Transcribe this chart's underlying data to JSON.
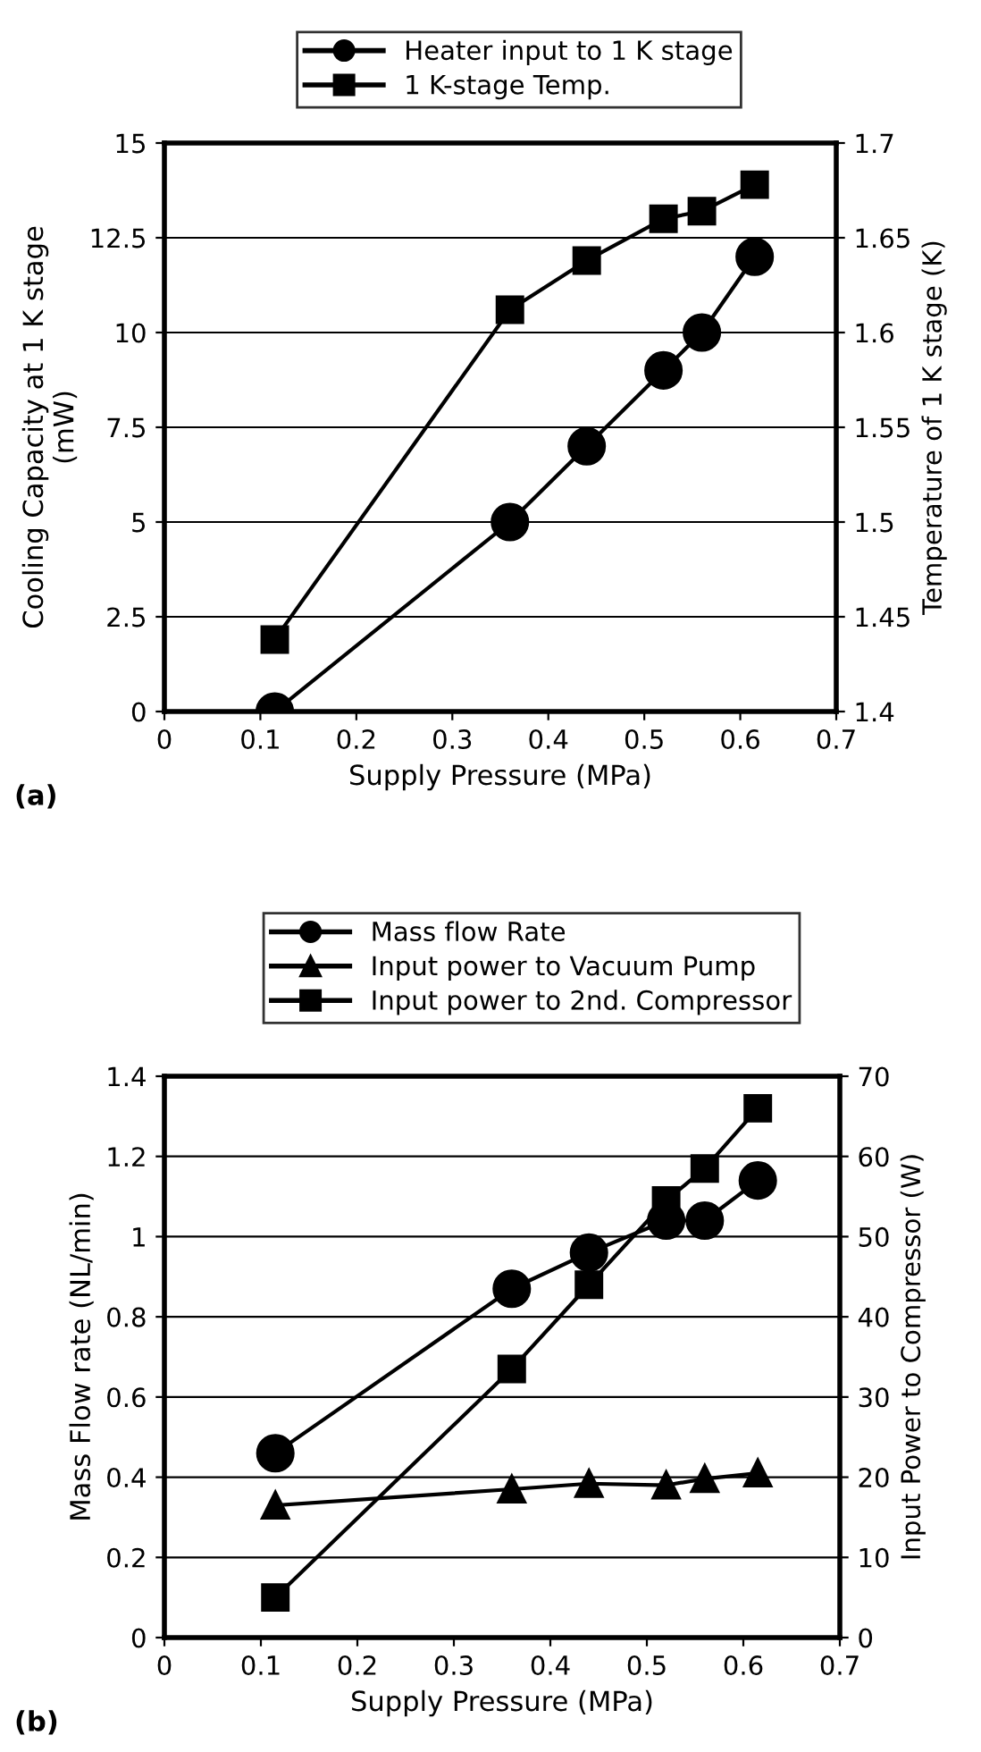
{
  "chart_data": [
    {
      "type": "line",
      "xlabel": "Supply Pressure (MPa)",
      "ylabel": "Cooling Capacity at 1 K stage\n(mW)",
      "y2label": "Temperature of 1 K stage (K)",
      "x": [
        0.115,
        0.36,
        0.44,
        0.52,
        0.56,
        0.615
      ],
      "series": [
        {
          "name": "Heater input to 1 K stage",
          "color": "#000000",
          "marker": "circle",
          "values": [
            0,
            5,
            7,
            9,
            10,
            12
          ]
        },
        {
          "name": "1 K-stage Temp.",
          "color": "#000000",
          "marker": "square",
          "axis": "y2",
          "values": [
            1.438,
            1.612,
            1.638,
            1.66,
            1.664,
            1.678
          ]
        }
      ],
      "xlim": [
        0,
        0.7
      ],
      "xticks": [
        0,
        0.1,
        0.2,
        0.3,
        0.4,
        0.5,
        0.6,
        0.7
      ],
      "ylim": [
        0,
        15
      ],
      "yticks": [
        0,
        2.5,
        5,
        7.5,
        10,
        12.5,
        15
      ],
      "y2lim": [
        1.4,
        1.7
      ],
      "y2ticks": [
        1.4,
        1.45,
        1.5,
        1.55,
        1.6,
        1.65,
        1.7
      ],
      "grid": "y",
      "legend": "top",
      "line_style": "solid",
      "annotations": [
        "(a)"
      ]
    },
    {
      "type": "line",
      "xlabel": "Supply Pressure (MPa)",
      "ylabel": "Mass Flow rate (NL/min)",
      "y2label": "Input Power to Compressor (W)",
      "x": [
        0.115,
        0.36,
        0.44,
        0.52,
        0.56,
        0.615
      ],
      "series": [
        {
          "name": "Mass flow Rate",
          "color": "#000000",
          "marker": "circle",
          "values": [
            0.46,
            0.87,
            0.96,
            1.04,
            1.04,
            1.14
          ]
        },
        {
          "name": "Input power to Vacuum Pump",
          "color": "#000000",
          "marker": "triangle",
          "axis": "y2",
          "values": [
            16.5,
            18.5,
            19.2,
            19,
            19.8,
            20.5
          ]
        },
        {
          "name": "Input power to 2nd. Compressor",
          "color": "#000000",
          "marker": "square",
          "axis": "y2",
          "values": [
            5,
            33.5,
            44,
            54.5,
            58.5,
            66
          ]
        }
      ],
      "xlim": [
        0,
        0.7
      ],
      "xticks": [
        0,
        0.1,
        0.2,
        0.3,
        0.4,
        0.5,
        0.6,
        0.7
      ],
      "ylim": [
        0,
        1.4
      ],
      "yticks": [
        0,
        0.2,
        0.4,
        0.6,
        0.8,
        1,
        1.2,
        1.4
      ],
      "y2lim": [
        0,
        70
      ],
      "y2ticks": [
        0,
        10,
        20,
        30,
        40,
        50,
        60,
        70
      ],
      "grid": "y",
      "legend": "top",
      "line_style": "solid",
      "annotations": [
        "(b)"
      ]
    }
  ]
}
